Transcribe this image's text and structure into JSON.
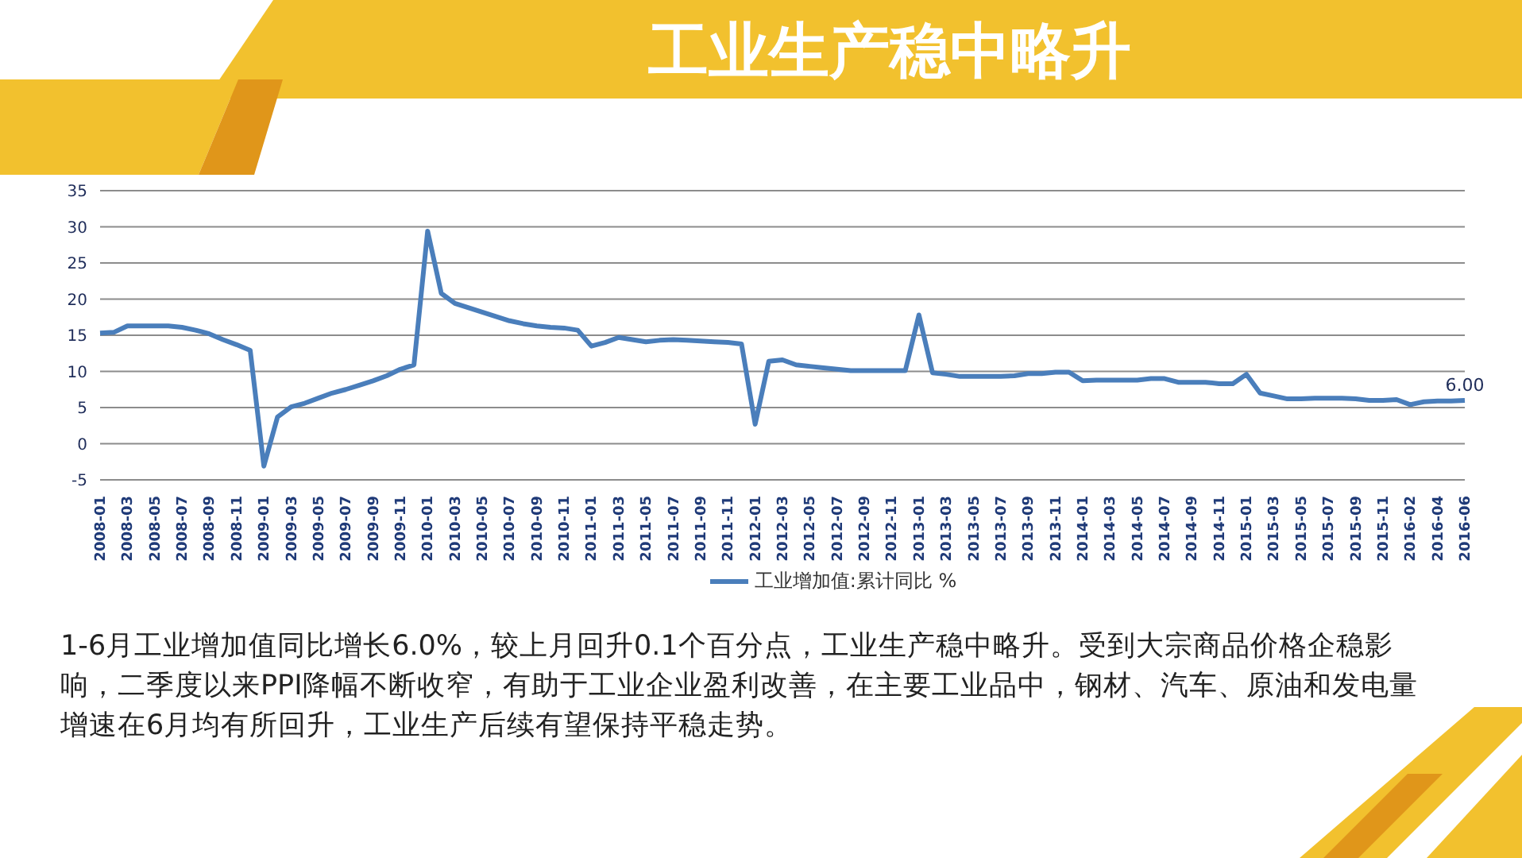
{
  "chart_data": {
    "type": "line",
    "title": "工业生产稳中略升",
    "categories": [
      "2008-01",
      null,
      "2008-03",
      null,
      "2008-05",
      null,
      "2008-07",
      null,
      "2008-09",
      null,
      "2008-11",
      null,
      "2009-01",
      null,
      "2009-03",
      null,
      "2009-05",
      null,
      "2009-07",
      null,
      "2009-09",
      null,
      "2009-11",
      null,
      "2010-01",
      null,
      "2010-03",
      null,
      "2010-05",
      null,
      "2010-07",
      null,
      "2010-09",
      null,
      "2010-11",
      null,
      "2011-01",
      null,
      "2011-03",
      null,
      "2011-05",
      null,
      "2011-07",
      null,
      "2011-09",
      null,
      "2011-11",
      null,
      "2012-01",
      null,
      "2012-03",
      null,
      "2012-05",
      null,
      "2012-07",
      null,
      "2012-09",
      null,
      "2012-11",
      null,
      "2013-01",
      null,
      "2013-03",
      null,
      "2013-05",
      null,
      "2013-07",
      null,
      "2013-09",
      null,
      "2013-11",
      null,
      "2014-01",
      null,
      "2014-03",
      null,
      "2014-05",
      null,
      "2014-07",
      null,
      "2014-09",
      null,
      "2014-11",
      null,
      "2015-01",
      null,
      "2015-03",
      null,
      "2015-05",
      null,
      "2015-07",
      null,
      "2015-09",
      null,
      "2015-11",
      null,
      "2016-02",
      null,
      "2016-04",
      null,
      "2016-06"
    ],
    "series": [
      {
        "name": "工业增加值:累计同比  %",
        "color": "#4a7ebb",
        "values": [
          15.3,
          15.4,
          16.3,
          16.3,
          16.3,
          16.3,
          16.1,
          15.7,
          15.2,
          14.4,
          13.7,
          12.9,
          -3.1,
          3.7,
          5.1,
          5.6,
          6.3,
          7.0,
          7.5,
          8.1,
          8.7,
          9.4,
          10.3,
          10.9,
          29.4,
          20.8,
          19.4,
          18.8,
          18.2,
          17.6,
          17.0,
          16.6,
          16.3,
          16.1,
          16.0,
          15.7,
          13.5,
          14.0,
          14.7,
          14.4,
          14.1,
          14.3,
          14.4,
          14.3,
          14.2,
          14.1,
          14.0,
          13.8,
          2.7,
          11.4,
          11.6,
          10.9,
          10.7,
          10.5,
          10.3,
          10.1,
          10.1,
          10.1,
          10.1,
          10.1,
          17.8,
          9.8,
          9.6,
          9.3,
          9.3,
          9.3,
          9.3,
          9.4,
          9.7,
          9.7,
          9.9,
          9.9,
          8.7,
          8.8,
          8.8,
          8.8,
          8.8,
          9.0,
          9.0,
          8.5,
          8.5,
          8.5,
          8.3,
          8.3,
          9.6,
          7.0,
          6.6,
          6.2,
          6.2,
          6.3,
          6.3,
          6.3,
          6.2,
          6.0,
          6.0,
          6.1,
          5.4,
          5.8,
          5.9,
          5.9,
          6.0
        ],
        "value_labels": [
          null,
          null,
          null,
          null,
          null,
          null,
          null,
          null,
          null,
          null,
          null,
          null,
          null,
          null,
          null,
          null,
          null,
          null,
          null,
          null,
          null,
          null,
          null,
          null,
          null,
          null,
          null,
          null,
          null,
          null,
          null,
          null,
          null,
          null,
          null,
          null,
          null,
          null,
          null,
          null,
          null,
          null,
          null,
          null,
          null,
          null,
          null,
          null,
          null,
          null,
          null,
          null,
          null,
          null,
          null,
          null,
          null,
          null,
          null,
          null,
          null,
          null,
          null,
          null,
          null,
          null,
          null,
          null,
          null,
          null,
          null,
          null,
          null,
          null,
          null,
          null,
          null,
          null,
          null,
          null,
          null,
          null,
          null,
          null,
          null,
          null,
          null,
          null,
          null,
          null,
          null,
          null,
          null,
          null,
          null,
          null,
          null,
          null,
          null,
          null,
          "6.00"
        ]
      }
    ],
    "ylim": [
      -5,
      35
    ],
    "yticks": [
      -5,
      0,
      5,
      10,
      15,
      20,
      25,
      30,
      35
    ],
    "grid": "y",
    "legend": "bottom",
    "marker": "none",
    "annotations": [
      "1-6月工业增加值同比增长6.0%，较上月回升0.1个百分点，工业生产稳中略升。受到大宗商品价格企稳影响，二季度以来PPI降幅不断收窄，有助于工业企业盈利改善，在主要工业品中，钢材、汽车、原油和发电量增速在6月均有所回升，工业生产后续有望保持平稳走势。"
    ]
  }
}
